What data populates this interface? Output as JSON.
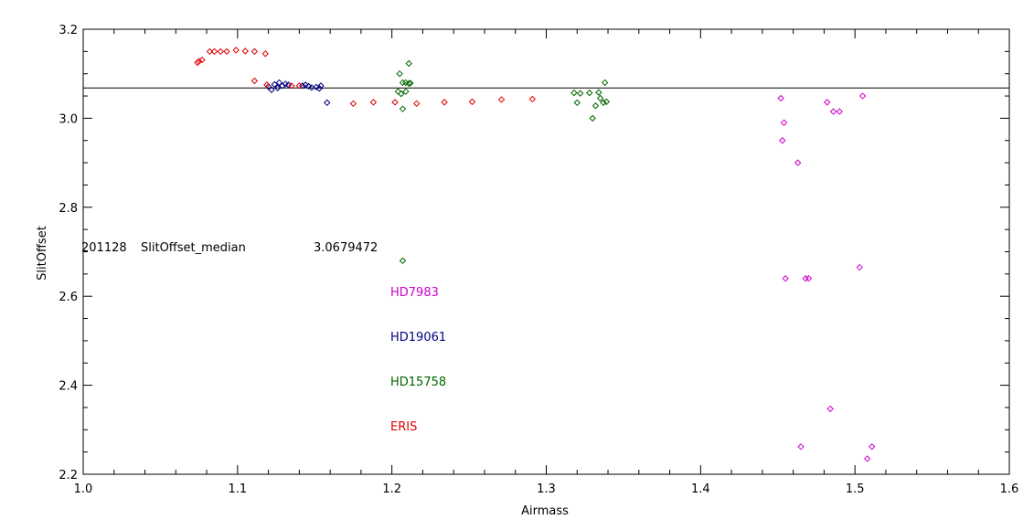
{
  "chart_data": {
    "type": "scatter",
    "title": "",
    "xlabel": "Airmass",
    "ylabel": "SlitOffset",
    "xlim": [
      1.0,
      1.6
    ],
    "ylim": [
      2.2,
      3.2
    ],
    "x_ticks": [
      1.0,
      1.1,
      1.2,
      1.3,
      1.4,
      1.5,
      1.6
    ],
    "x_tick_labels": [
      "1.0",
      "1.1",
      "1.2",
      "1.3",
      "1.4",
      "1.5",
      "1.6"
    ],
    "y_ticks": [
      2.2,
      2.4,
      2.6,
      2.8,
      3.0,
      3.2
    ],
    "y_tick_labels": [
      "2.2",
      "2.4",
      "2.6",
      "2.8",
      "3.0",
      "3.2"
    ],
    "marker": "diamond",
    "median_line": {
      "value": 3.0679472
    },
    "annotation": {
      "date": "201128",
      "label": "SlitOffset_median",
      "value_text": "3.0679472"
    },
    "legend_placement": "center-left, stacked text labels",
    "series": [
      {
        "name": "HD7983",
        "color": "#cc00cc",
        "points": [
          [
            1.452,
            3.045
          ],
          [
            1.454,
            2.99
          ],
          [
            1.453,
            2.95
          ],
          [
            1.463,
            2.9
          ],
          [
            1.455,
            2.64
          ],
          [
            1.468,
            2.64
          ],
          [
            1.47,
            2.64
          ],
          [
            1.482,
            3.036
          ],
          [
            1.486,
            3.015
          ],
          [
            1.49,
            3.015
          ],
          [
            1.505,
            3.05
          ],
          [
            1.503,
            2.665
          ],
          [
            1.484,
            2.347
          ],
          [
            1.465,
            2.262
          ],
          [
            1.508,
            2.235
          ],
          [
            1.511,
            2.262
          ]
        ]
      },
      {
        "name": "HD19061",
        "color": "#000080",
        "points": [
          [
            1.12,
            3.071
          ],
          [
            1.122,
            3.064
          ],
          [
            1.124,
            3.076
          ],
          [
            1.126,
            3.068
          ],
          [
            1.127,
            3.08
          ],
          [
            1.129,
            3.073
          ],
          [
            1.131,
            3.077
          ],
          [
            1.133,
            3.075
          ],
          [
            1.142,
            3.073
          ],
          [
            1.144,
            3.075
          ],
          [
            1.146,
            3.072
          ],
          [
            1.148,
            3.069
          ],
          [
            1.151,
            3.07
          ],
          [
            1.153,
            3.067
          ],
          [
            1.154,
            3.073
          ],
          [
            1.158,
            3.035
          ]
        ]
      },
      {
        "name": "HD15758",
        "color": "#006400",
        "points": [
          [
            1.205,
            3.1
          ],
          [
            1.211,
            3.123
          ],
          [
            1.207,
            3.08
          ],
          [
            1.209,
            3.08
          ],
          [
            1.211,
            3.078
          ],
          [
            1.212,
            3.079
          ],
          [
            1.204,
            3.06
          ],
          [
            1.206,
            3.055
          ],
          [
            1.209,
            3.06
          ],
          [
            1.207,
            3.021
          ],
          [
            1.207,
            2.68
          ],
          [
            1.318,
            3.057
          ],
          [
            1.32,
            3.035
          ],
          [
            1.322,
            3.056
          ],
          [
            1.328,
            3.057
          ],
          [
            1.33,
            3.0
          ],
          [
            1.332,
            3.028
          ],
          [
            1.334,
            3.058
          ],
          [
            1.335,
            3.045
          ],
          [
            1.337,
            3.035
          ],
          [
            1.338,
            3.08
          ],
          [
            1.339,
            3.037
          ]
        ]
      },
      {
        "name": "ERIS",
        "color": "#dd0000",
        "points": [
          [
            1.074,
            3.125
          ],
          [
            1.075,
            3.128
          ],
          [
            1.077,
            3.131
          ],
          [
            1.082,
            3.15
          ],
          [
            1.085,
            3.15
          ],
          [
            1.089,
            3.15
          ],
          [
            1.093,
            3.15
          ],
          [
            1.099,
            3.153
          ],
          [
            1.105,
            3.151
          ],
          [
            1.111,
            3.15
          ],
          [
            1.118,
            3.145
          ],
          [
            1.111,
            3.084
          ],
          [
            1.119,
            3.075
          ],
          [
            1.135,
            3.073
          ],
          [
            1.14,
            3.073
          ],
          [
            1.175,
            3.033
          ],
          [
            1.188,
            3.036
          ],
          [
            1.202,
            3.036
          ],
          [
            1.216,
            3.033
          ],
          [
            1.234,
            3.036
          ],
          [
            1.252,
            3.037
          ],
          [
            1.271,
            3.042
          ],
          [
            1.291,
            3.043
          ]
        ]
      }
    ]
  }
}
